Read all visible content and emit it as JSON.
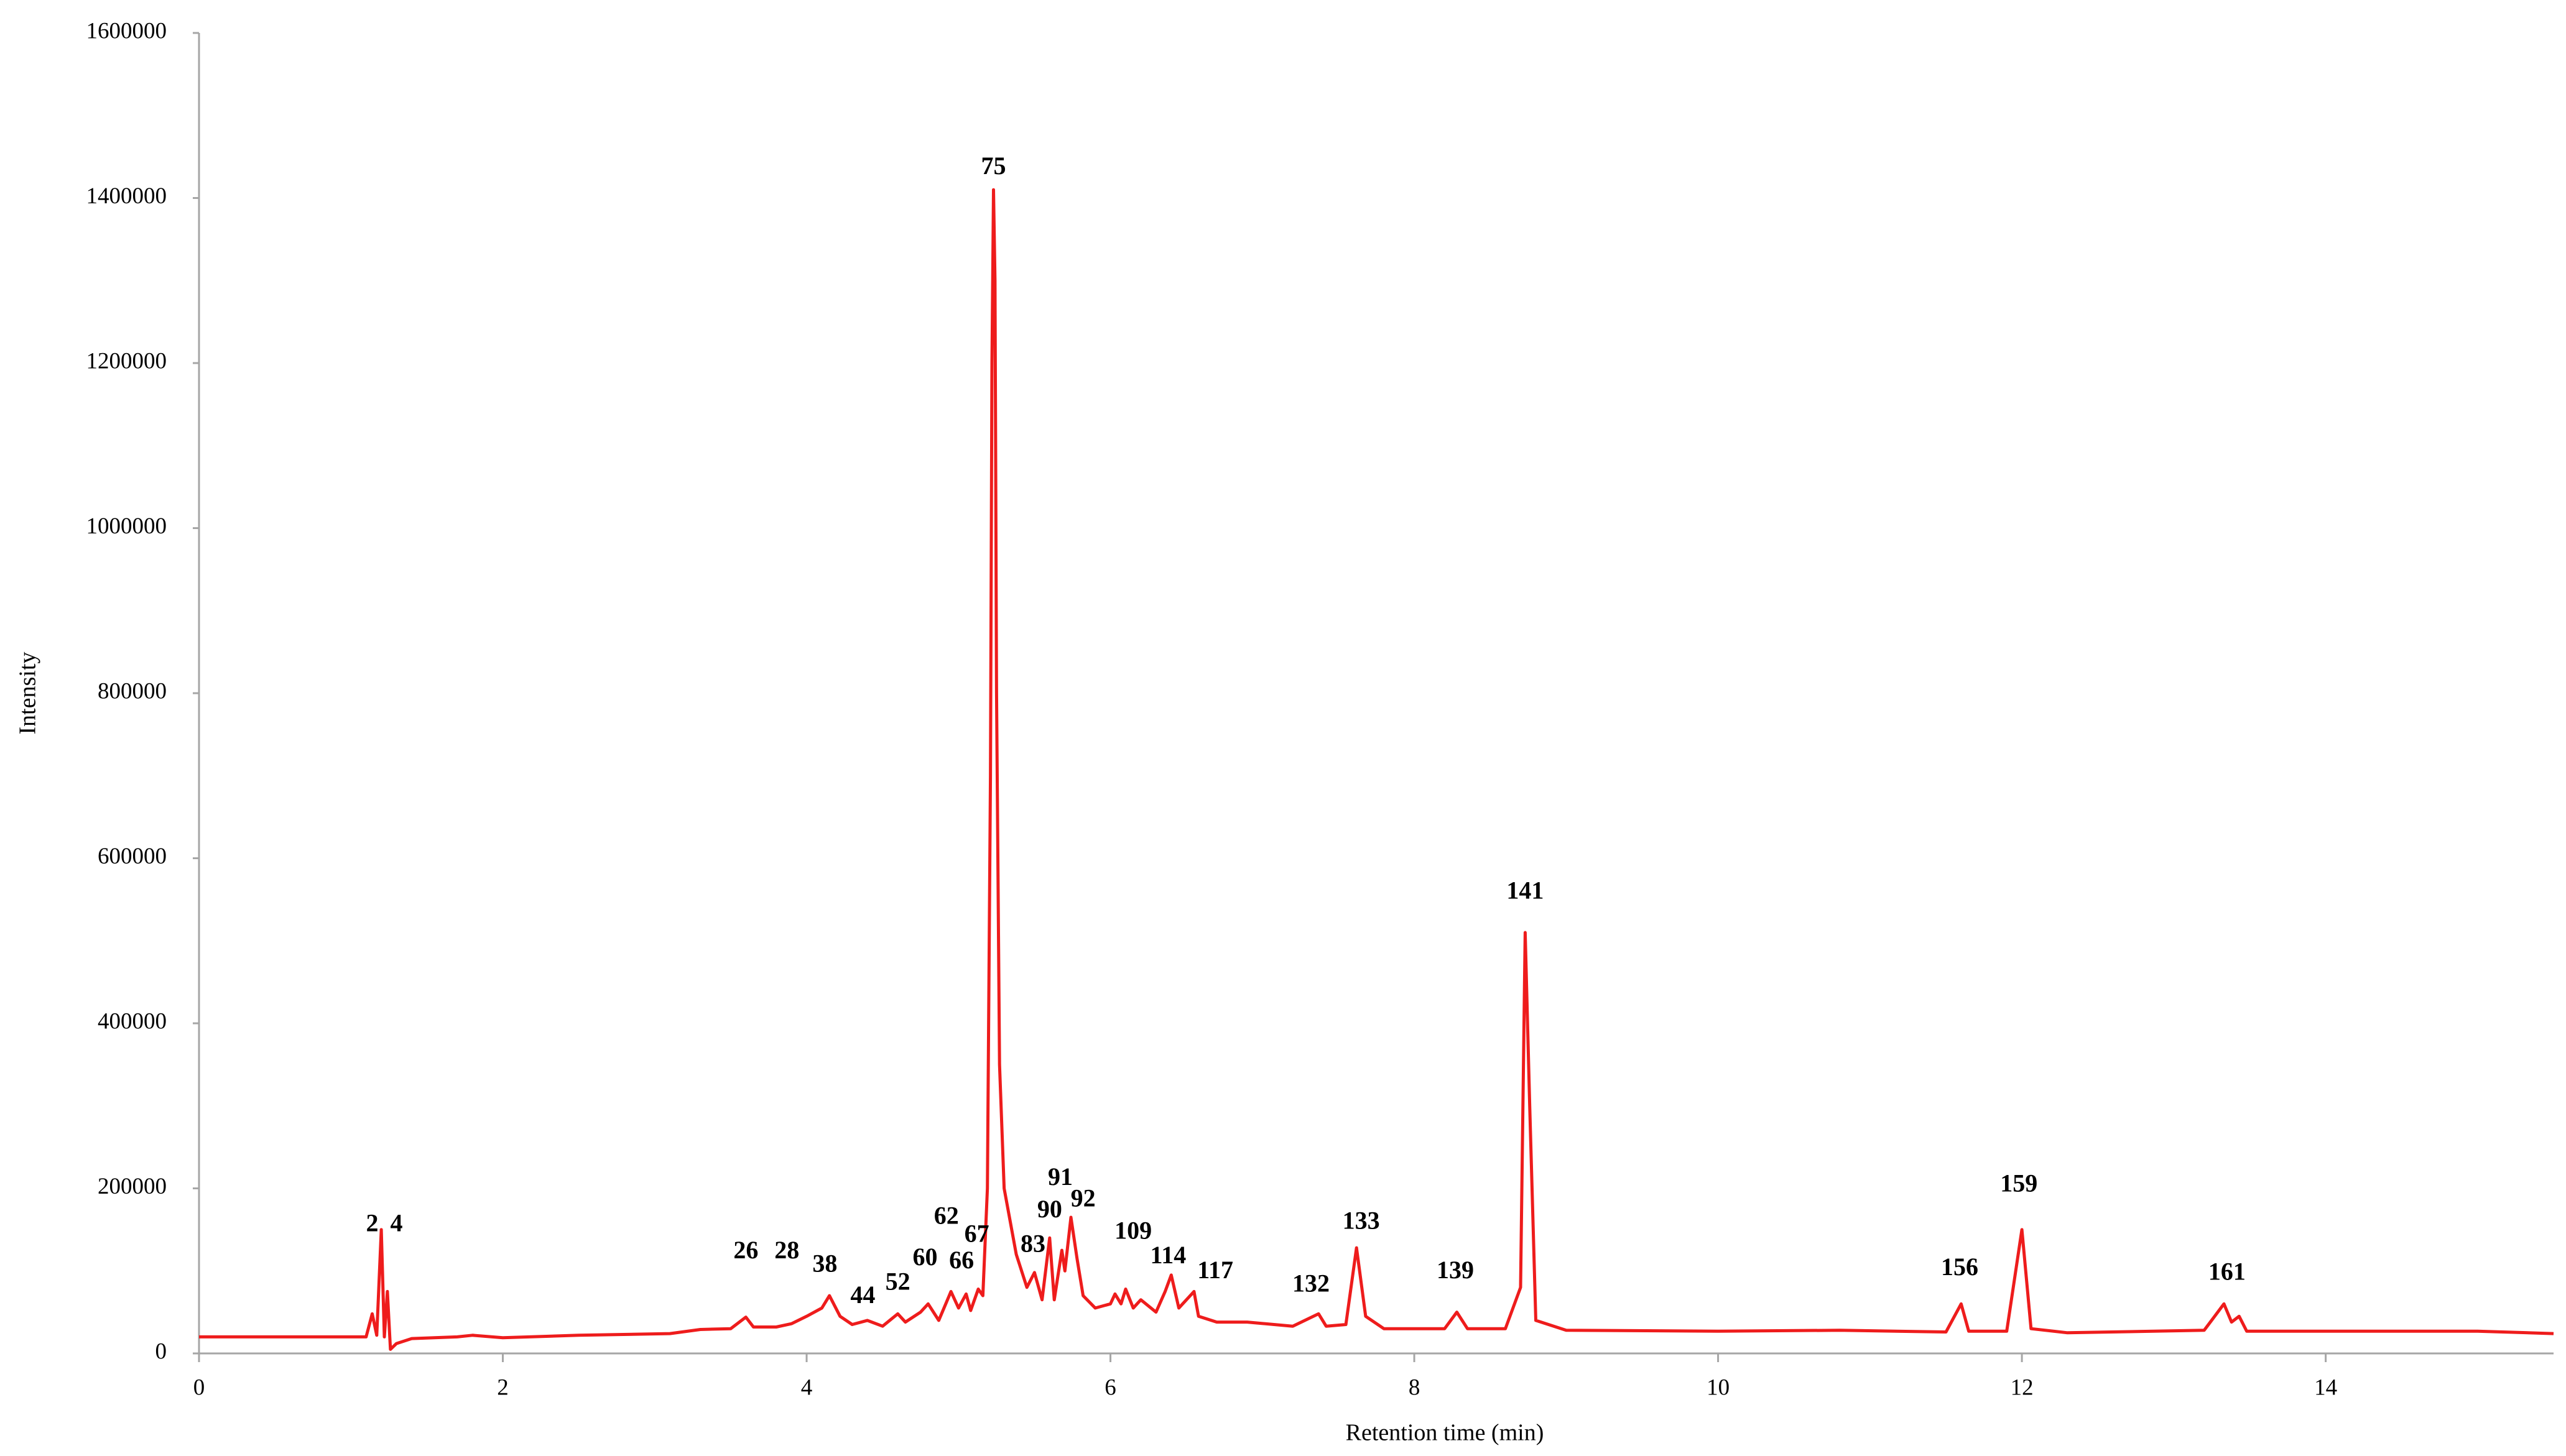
{
  "chart_data": {
    "type": "line",
    "x_label": "Retention time (min)",
    "y_label": "Intensity",
    "xlim": [
      0,
      15.5
    ],
    "xticks": [
      0,
      2,
      4,
      6,
      8,
      10,
      12,
      14
    ],
    "ylim": [
      0,
      1600000
    ],
    "yticks": [
      0,
      200000,
      400000,
      600000,
      800000,
      1000000,
      1200000,
      1400000,
      1600000
    ],
    "grid": false,
    "x": [
      0,
      1.1,
      1.14,
      1.17,
      1.2,
      1.22,
      1.24,
      1.26,
      1.3,
      1.4,
      1.7,
      1.8,
      2.0,
      2.5,
      3.1,
      3.3,
      3.5,
      3.6,
      3.65,
      3.8,
      3.9,
      4.0,
      4.1,
      4.15,
      4.22,
      4.3,
      4.4,
      4.5,
      4.6,
      4.65,
      4.75,
      4.8,
      4.87,
      4.95,
      5.0,
      5.05,
      5.08,
      5.13,
      5.16,
      5.19,
      5.21,
      5.22,
      5.23,
      5.24,
      5.25,
      5.27,
      5.3,
      5.38,
      5.45,
      5.5,
      5.55,
      5.6,
      5.63,
      5.68,
      5.7,
      5.74,
      5.78,
      5.82,
      5.9,
      6.0,
      6.03,
      6.07,
      6.1,
      6.15,
      6.2,
      6.3,
      6.36,
      6.4,
      6.45,
      6.55,
      6.58,
      6.7,
      6.9,
      7.2,
      7.37,
      7.42,
      7.55,
      7.62,
      7.68,
      7.8,
      8.2,
      8.28,
      8.35,
      8.6,
      8.7,
      8.73,
      8.76,
      8.8,
      9.0,
      10.0,
      10.8,
      11.5,
      11.6,
      11.65,
      11.9,
      12.0,
      12.06,
      12.3,
      13.2,
      13.33,
      13.38,
      13.43,
      13.48,
      15.0,
      15.5
    ],
    "series": [
      {
        "color": "#ee1c1c",
        "values": [
          20000,
          20000,
          48000,
          22000,
          150000,
          20000,
          75000,
          5000,
          12000,
          18000,
          20000,
          22000,
          19000,
          22000,
          24000,
          29000,
          30000,
          44000,
          32000,
          32000,
          36000,
          45000,
          55000,
          70000,
          45000,
          35000,
          40000,
          33000,
          48000,
          38000,
          50000,
          60000,
          40000,
          75000,
          55000,
          72000,
          52000,
          78000,
          70000,
          200000,
          700000,
          1200000,
          1410000,
          1300000,
          800000,
          350000,
          200000,
          120000,
          80000,
          98000,
          65000,
          140000,
          65000,
          125000,
          100000,
          165000,
          115000,
          70000,
          55000,
          60000,
          72000,
          60000,
          78000,
          55000,
          65000,
          50000,
          75000,
          95000,
          55000,
          75000,
          45000,
          38000,
          38000,
          33000,
          48000,
          33000,
          35000,
          128000,
          45000,
          30000,
          30000,
          50000,
          30000,
          30000,
          80000,
          510000,
          300000,
          40000,
          28000,
          27000,
          28000,
          26000,
          60000,
          27000,
          27000,
          150000,
          30000,
          25000,
          28000,
          60000,
          38000,
          45000,
          27000,
          27000,
          24000
        ]
      }
    ],
    "annotations": [
      {
        "text": "2",
        "x": 1.14,
        "y": 155000
      },
      {
        "text": "4",
        "x": 1.3,
        "y": 155000
      },
      {
        "text": "26",
        "x": 3.6,
        "y": 122000
      },
      {
        "text": "28",
        "x": 3.87,
        "y": 122000
      },
      {
        "text": "38",
        "x": 4.12,
        "y": 106000
      },
      {
        "text": "44",
        "x": 4.37,
        "y": 68000
      },
      {
        "text": "52",
        "x": 4.6,
        "y": 84000
      },
      {
        "text": "60",
        "x": 4.78,
        "y": 114000
      },
      {
        "text": "62",
        "x": 4.92,
        "y": 164000
      },
      {
        "text": "66",
        "x": 5.02,
        "y": 110000
      },
      {
        "text": "67",
        "x": 5.12,
        "y": 142000
      },
      {
        "text": "75",
        "x": 5.23,
        "y": 1436000
      },
      {
        "text": "83",
        "x": 5.49,
        "y": 130000
      },
      {
        "text": "90",
        "x": 5.6,
        "y": 172000
      },
      {
        "text": "91",
        "x": 5.67,
        "y": 211000
      },
      {
        "text": "92",
        "x": 5.82,
        "y": 185000
      },
      {
        "text": "109",
        "x": 6.15,
        "y": 146000
      },
      {
        "text": "114",
        "x": 6.38,
        "y": 116000
      },
      {
        "text": "117",
        "x": 6.69,
        "y": 98000
      },
      {
        "text": "132",
        "x": 7.32,
        "y": 82000
      },
      {
        "text": "133",
        "x": 7.65,
        "y": 158000
      },
      {
        "text": "139",
        "x": 8.27,
        "y": 98000
      },
      {
        "text": "141",
        "x": 8.73,
        "y": 558000
      },
      {
        "text": "156",
        "x": 11.59,
        "y": 102000
      },
      {
        "text": "159",
        "x": 11.98,
        "y": 203000
      },
      {
        "text": "161",
        "x": 13.35,
        "y": 96000
      }
    ]
  }
}
